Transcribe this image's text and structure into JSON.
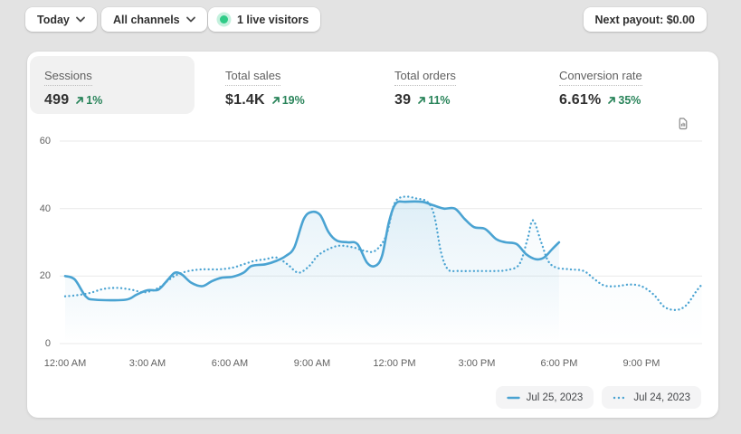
{
  "topbar": {
    "date_range": "Today",
    "channels": "All channels",
    "live_visitors": "1 live visitors",
    "next_payout": "Next payout: $0.00"
  },
  "metrics": [
    {
      "label": "Sessions",
      "value": "499",
      "delta": "1%",
      "selected": true
    },
    {
      "label": "Total sales",
      "value": "$1.4K",
      "delta": "19%",
      "selected": false
    },
    {
      "label": "Total orders",
      "value": "39",
      "delta": "11%",
      "selected": false
    },
    {
      "label": "Conversion rate",
      "value": "6.61%",
      "delta": "35%",
      "selected": false
    }
  ],
  "legend": [
    {
      "label": "Jul 25, 2023",
      "style": "solid"
    },
    {
      "label": "Jul 24, 2023",
      "style": "dotted"
    }
  ],
  "colors": {
    "line_blue": "#4aa3d2",
    "positive_green": "#29845a",
    "live_green": "#2fcb87",
    "grid": "#e9e9e9",
    "axis_text": "#616161",
    "page_bg": "#e3e3e3"
  },
  "chart_data": {
    "type": "line",
    "title": "Sessions",
    "xlabel": "",
    "ylabel": "",
    "x_axis": {
      "labels": [
        "12:00 AM",
        "3:00 AM",
        "6:00 AM",
        "9:00 AM",
        "12:00 PM",
        "3:00 PM",
        "6:00 PM",
        "9:00 PM"
      ],
      "label_hours": [
        0,
        3,
        6,
        9,
        12,
        15,
        18,
        21
      ],
      "range_hours": [
        0,
        24
      ]
    },
    "y_axis": {
      "ticks": [
        0,
        20,
        40,
        60
      ],
      "range": [
        0,
        60
      ],
      "grid": true
    },
    "legend_position": "bottom-right",
    "series": [
      {
        "name": "Jul 25, 2023",
        "style": "solid",
        "points_hour_value": [
          [
            0,
            20
          ],
          [
            0.35,
            19
          ],
          [
            0.75,
            14
          ],
          [
            1.1,
            13
          ],
          [
            2.2,
            13
          ],
          [
            2.6,
            14.5
          ],
          [
            3.0,
            15.8
          ],
          [
            3.4,
            16
          ],
          [
            3.75,
            19
          ],
          [
            4.0,
            21
          ],
          [
            4.25,
            20.5
          ],
          [
            4.6,
            18
          ],
          [
            5.0,
            17
          ],
          [
            5.35,
            18.5
          ],
          [
            5.7,
            19.5
          ],
          [
            6.1,
            19.8
          ],
          [
            6.5,
            21
          ],
          [
            6.8,
            23
          ],
          [
            7.3,
            23.5
          ],
          [
            7.7,
            24.5
          ],
          [
            8.05,
            26
          ],
          [
            8.35,
            28.5
          ],
          [
            8.7,
            37
          ],
          [
            9.0,
            39
          ],
          [
            9.3,
            38
          ],
          [
            9.6,
            33
          ],
          [
            9.9,
            30.5
          ],
          [
            10.3,
            30
          ],
          [
            10.65,
            29.5
          ],
          [
            11.0,
            24
          ],
          [
            11.3,
            23
          ],
          [
            11.55,
            26
          ],
          [
            11.8,
            36
          ],
          [
            12.05,
            41.5
          ],
          [
            12.4,
            42
          ],
          [
            13.0,
            42
          ],
          [
            13.4,
            41
          ],
          [
            13.8,
            40
          ],
          [
            14.2,
            40
          ],
          [
            14.55,
            37
          ],
          [
            14.9,
            34.5
          ],
          [
            15.3,
            34
          ],
          [
            15.7,
            31
          ],
          [
            16.05,
            30
          ],
          [
            16.45,
            29.5
          ],
          [
            16.8,
            26.5
          ],
          [
            17.15,
            25
          ],
          [
            17.45,
            25.5
          ],
          [
            17.75,
            28
          ],
          [
            18.0,
            30
          ]
        ]
      },
      {
        "name": "Jul 24, 2023",
        "style": "dotted",
        "points_hour_value": [
          [
            0,
            14
          ],
          [
            0.4,
            14.3
          ],
          [
            0.9,
            15
          ],
          [
            1.4,
            16.2
          ],
          [
            1.9,
            16.5
          ],
          [
            2.4,
            16
          ],
          [
            2.9,
            15.2
          ],
          [
            3.4,
            16.5
          ],
          [
            3.8,
            19
          ],
          [
            4.1,
            20.5
          ],
          [
            4.5,
            21.5
          ],
          [
            5.0,
            22
          ],
          [
            5.6,
            22
          ],
          [
            6.1,
            22.5
          ],
          [
            6.5,
            23.5
          ],
          [
            6.9,
            24.5
          ],
          [
            7.3,
            25
          ],
          [
            7.7,
            25.5
          ],
          [
            8.1,
            23.5
          ],
          [
            8.5,
            21
          ],
          [
            8.9,
            23
          ],
          [
            9.2,
            26
          ],
          [
            9.6,
            28
          ],
          [
            10.0,
            29
          ],
          [
            10.5,
            28.5
          ],
          [
            10.9,
            27.5
          ],
          [
            11.3,
            27.5
          ],
          [
            11.7,
            32
          ],
          [
            12.0,
            41.5
          ],
          [
            12.35,
            43.5
          ],
          [
            12.8,
            43
          ],
          [
            13.2,
            42
          ],
          [
            13.45,
            38
          ],
          [
            13.7,
            27
          ],
          [
            13.95,
            22
          ],
          [
            14.3,
            21.5
          ],
          [
            15.0,
            21.5
          ],
          [
            15.7,
            21.5
          ],
          [
            16.1,
            21.8
          ],
          [
            16.55,
            23.5
          ],
          [
            16.85,
            31
          ],
          [
            17.05,
            36.5
          ],
          [
            17.35,
            30
          ],
          [
            17.6,
            24.5
          ],
          [
            17.9,
            22.5
          ],
          [
            18.4,
            22
          ],
          [
            18.9,
            21.5
          ],
          [
            19.3,
            19
          ],
          [
            19.65,
            17.2
          ],
          [
            20.1,
            17
          ],
          [
            20.55,
            17.5
          ],
          [
            21.0,
            17
          ],
          [
            21.45,
            14.5
          ],
          [
            21.85,
            10.8
          ],
          [
            22.3,
            10
          ],
          [
            22.65,
            11.5
          ],
          [
            23.0,
            15.5
          ],
          [
            23.2,
            17.5
          ]
        ]
      }
    ]
  }
}
